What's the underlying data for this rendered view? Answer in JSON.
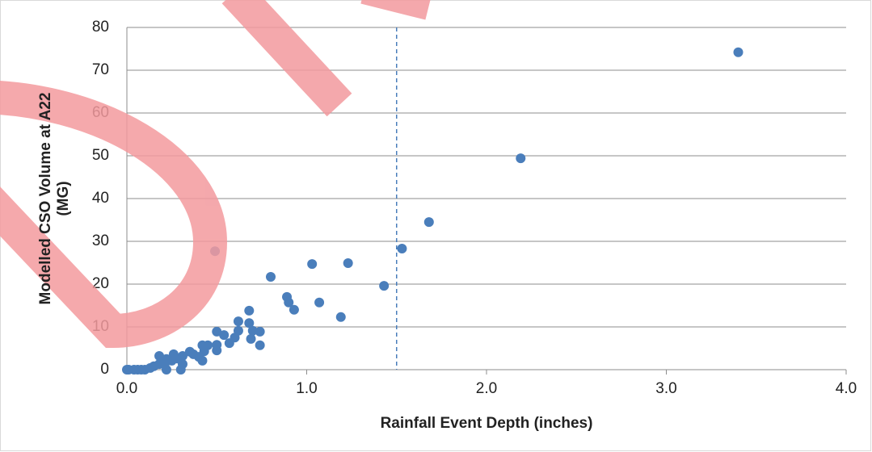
{
  "chart_data": {
    "type": "scatter",
    "xlabel": "Rainfall Event Depth (inches)",
    "ylabel": "Modelled CSO Volume at A22 (MG)",
    "color": "#4a7ebb",
    "x": [
      3.4,
      2.19,
      1.68,
      1.53,
      1.43,
      1.23,
      1.19,
      1.03,
      1.07,
      0.89,
      0.9,
      0.93,
      0.8,
      0.49,
      0.68,
      0.68,
      0.7,
      0.74,
      0.69,
      0.74,
      0.62,
      0.62,
      0.6,
      0.57,
      0.54,
      0.5,
      0.5,
      0.5,
      0.45,
      0.42,
      0.43,
      0.4,
      0.42,
      0.37,
      0.35,
      0.31,
      0.31,
      0.3,
      0.28,
      0.26,
      0.25,
      0.22,
      0.21,
      0.22,
      0.18,
      0.18,
      0.15,
      0.13,
      0.1,
      0.08,
      0.06,
      0.04,
      0.01,
      0
    ],
    "y": [
      74.2,
      49.4,
      34.5,
      28.3,
      19.6,
      24.9,
      12.3,
      24.7,
      15.7,
      17.0,
      15.7,
      14.0,
      21.7,
      27.7,
      13.8,
      10.9,
      9.1,
      8.9,
      7.2,
      5.7,
      11.3,
      9.1,
      7.5,
      6.2,
      8.1,
      8.9,
      5.8,
      4.5,
      5.7,
      5.7,
      4.3,
      3.0,
      2.1,
      3.6,
      4.2,
      3.2,
      1.3,
      0,
      2.6,
      3.6,
      2.1,
      2.5,
      1.3,
      0,
      3.2,
      1.3,
      0.8,
      0.4,
      0,
      0,
      0,
      0,
      0,
      0
    ],
    "xlim": [
      0,
      4
    ],
    "ylim": [
      0,
      80
    ],
    "xticks": [
      {
        "value": 0,
        "label": "0.0"
      },
      {
        "value": 1,
        "label": "1.0"
      },
      {
        "value": 2,
        "label": "2.0"
      },
      {
        "value": 3,
        "label": "3.0"
      },
      {
        "value": 4,
        "label": "4.0"
      }
    ],
    "yticks": [
      0,
      10,
      20,
      30,
      40,
      50,
      60,
      70,
      80
    ],
    "grid": true,
    "vline": 1.5,
    "vline_color": "#4a7ebb"
  }
}
